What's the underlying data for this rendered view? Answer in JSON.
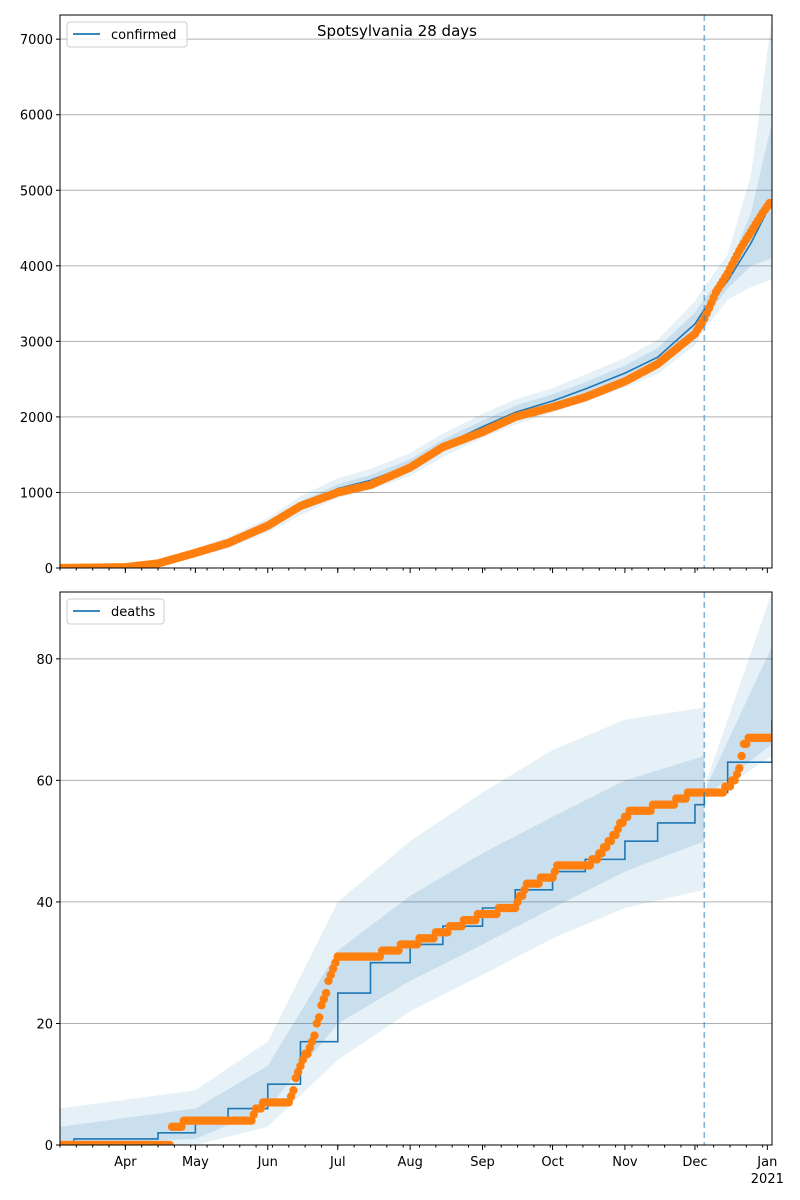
{
  "chart_data": [
    {
      "type": "line",
      "title": "Spotsylvania 28 days",
      "legend": {
        "label": "confirmed",
        "placement": "top-left"
      },
      "ylim": [
        0,
        7320
      ],
      "yticks": [
        0,
        1000,
        2000,
        3000,
        4000,
        5000,
        6000,
        7000
      ],
      "grid": "horizontal",
      "xlim": [
        "2020-03-04",
        "2021-01-03"
      ],
      "forecast_start": "2020-12-05",
      "model": {
        "x": [
          "2020-03-04",
          "2020-04-01",
          "2020-04-15",
          "2020-05-01",
          "2020-05-15",
          "2020-06-01",
          "2020-06-15",
          "2020-07-01",
          "2020-07-15",
          "2020-08-01",
          "2020-08-15",
          "2020-09-01",
          "2020-09-15",
          "2020-10-01",
          "2020-10-15",
          "2020-11-01",
          "2020-11-15",
          "2020-12-01",
          "2020-12-05",
          "2020-12-15",
          "2020-12-25",
          "2021-01-03"
        ],
        "y": [
          0,
          10,
          60,
          200,
          330,
          560,
          820,
          1050,
          1160,
          1360,
          1620,
          1870,
          2060,
          2210,
          2370,
          2580,
          2790,
          3230,
          3420,
          3800,
          4300,
          4850
        ]
      },
      "band_outer": {
        "low": [
          0,
          0,
          20,
          150,
          260,
          470,
          700,
          930,
          1030,
          1220,
          1470,
          1720,
          1900,
          2060,
          2200,
          2390,
          2570,
          2950,
          3150,
          3550,
          3720,
          3820
        ],
        "high": [
          20,
          40,
          110,
          260,
          410,
          660,
          950,
          1190,
          1310,
          1520,
          1780,
          2040,
          2230,
          2380,
          2560,
          2780,
          3020,
          3530,
          3720,
          4150,
          5200,
          7300
        ]
      },
      "band_inner": {
        "low": [
          0,
          5,
          40,
          175,
          290,
          510,
          760,
          990,
          1100,
          1290,
          1550,
          1800,
          1980,
          2140,
          2290,
          2490,
          2690,
          3100,
          3300,
          3700,
          4000,
          4100
        ],
        "high": [
          10,
          20,
          80,
          225,
          370,
          610,
          880,
          1110,
          1230,
          1440,
          1700,
          1950,
          2150,
          2300,
          2460,
          2680,
          2910,
          3380,
          3560,
          3950,
          4700,
          5900
        ]
      },
      "observed": {
        "x": [
          "2020-03-04",
          "2020-04-01",
          "2020-04-15",
          "2020-05-01",
          "2020-05-15",
          "2020-06-01",
          "2020-06-15",
          "2020-07-01",
          "2020-07-15",
          "2020-08-01",
          "2020-08-15",
          "2020-09-01",
          "2020-09-15",
          "2020-10-01",
          "2020-10-15",
          "2020-11-01",
          "2020-11-15",
          "2020-12-01",
          "2020-12-05",
          "2020-12-10",
          "2020-12-15",
          "2020-12-20",
          "2020-12-25",
          "2020-12-30",
          "2021-01-02"
        ],
        "y": [
          0,
          10,
          60,
          200,
          330,
          560,
          820,
          1000,
          1100,
          1330,
          1600,
          1800,
          2000,
          2130,
          2260,
          2470,
          2700,
          3100,
          3300,
          3650,
          3900,
          4200,
          4450,
          4700,
          4830
        ]
      }
    },
    {
      "type": "line",
      "legend": {
        "label": "deaths",
        "placement": "top-left"
      },
      "ylim": [
        0,
        91
      ],
      "yticks": [
        0,
        20,
        40,
        60,
        80
      ],
      "grid": "horizontal",
      "xlim": [
        "2020-03-04",
        "2021-01-03"
      ],
      "xticks": [
        "Apr",
        "May",
        "Jun",
        "Jul",
        "Aug",
        "Sep",
        "Oct",
        "Nov",
        "Dec",
        "Jan"
      ],
      "xtick_dates": [
        "2020-04-01",
        "2020-05-01",
        "2020-06-01",
        "2020-07-01",
        "2020-08-01",
        "2020-09-01",
        "2020-10-01",
        "2020-11-01",
        "2020-12-01",
        "2021-01-01"
      ],
      "year_label": "2021",
      "forecast_start": "2020-12-05",
      "model": {
        "x": [
          "2020-03-04",
          "2020-03-10",
          "2020-04-15",
          "2020-05-01",
          "2020-05-15",
          "2020-06-01",
          "2020-06-15",
          "2020-07-01",
          "2020-07-15",
          "2020-08-01",
          "2020-08-15",
          "2020-09-01",
          "2020-09-15",
          "2020-10-01",
          "2020-10-15",
          "2020-11-01",
          "2020-11-15",
          "2020-12-01",
          "2020-12-05",
          "2020-12-15",
          "2021-01-03"
        ],
        "y": [
          0,
          1,
          2,
          4,
          6,
          10,
          17,
          25,
          30,
          33,
          36,
          39,
          42,
          45,
          47,
          50,
          53,
          56,
          58,
          63,
          70
        ]
      },
      "band_outer": {
        "x": [
          "2020-03-04",
          "2020-05-01",
          "2020-06-01",
          "2020-07-01",
          "2020-08-01",
          "2020-09-01",
          "2020-10-01",
          "2020-11-01",
          "2020-12-05",
          "2020-12-06",
          "2021-01-03"
        ],
        "low": [
          0,
          0,
          3,
          14,
          22,
          28,
          34,
          39,
          42,
          57,
          64
        ],
        "high": [
          6,
          9,
          17,
          40,
          50,
          58,
          65,
          70,
          72,
          60,
          91
        ]
      },
      "band_inner": {
        "low": [
          0,
          1,
          6,
          20,
          27,
          33,
          39,
          45,
          50,
          57.5,
          66
        ],
        "high": [
          3,
          6,
          13,
          32,
          41,
          48,
          54,
          60,
          64,
          59,
          82
        ]
      },
      "observed": {
        "x": [
          "2020-03-04",
          "2020-04-20",
          "2020-04-21",
          "2020-05-01",
          "2020-05-25",
          "2020-05-27",
          "2020-06-01",
          "2020-06-10",
          "2020-06-15",
          "2020-06-20",
          "2020-06-25",
          "2020-06-28",
          "2020-07-01",
          "2020-07-15",
          "2020-08-01",
          "2020-08-15",
          "2020-09-01",
          "2020-09-15",
          "2020-09-20",
          "2020-10-01",
          "2020-10-03",
          "2020-10-15",
          "2020-10-20",
          "2020-10-26",
          "2020-11-01",
          "2020-11-05",
          "2020-11-20",
          "2020-11-25",
          "2020-12-01",
          "2020-12-12",
          "2020-12-18",
          "2020-12-20",
          "2020-12-22",
          "2020-12-25",
          "2021-01-02"
        ],
        "y": [
          0,
          0,
          3,
          4,
          4,
          6,
          7,
          7,
          13,
          17,
          24,
          28,
          31,
          31,
          33,
          35,
          38,
          39,
          43,
          44,
          46,
          46,
          47,
          50,
          54,
          55,
          56,
          57,
          58,
          58,
          60,
          62,
          66,
          67,
          67
        ]
      }
    }
  ]
}
